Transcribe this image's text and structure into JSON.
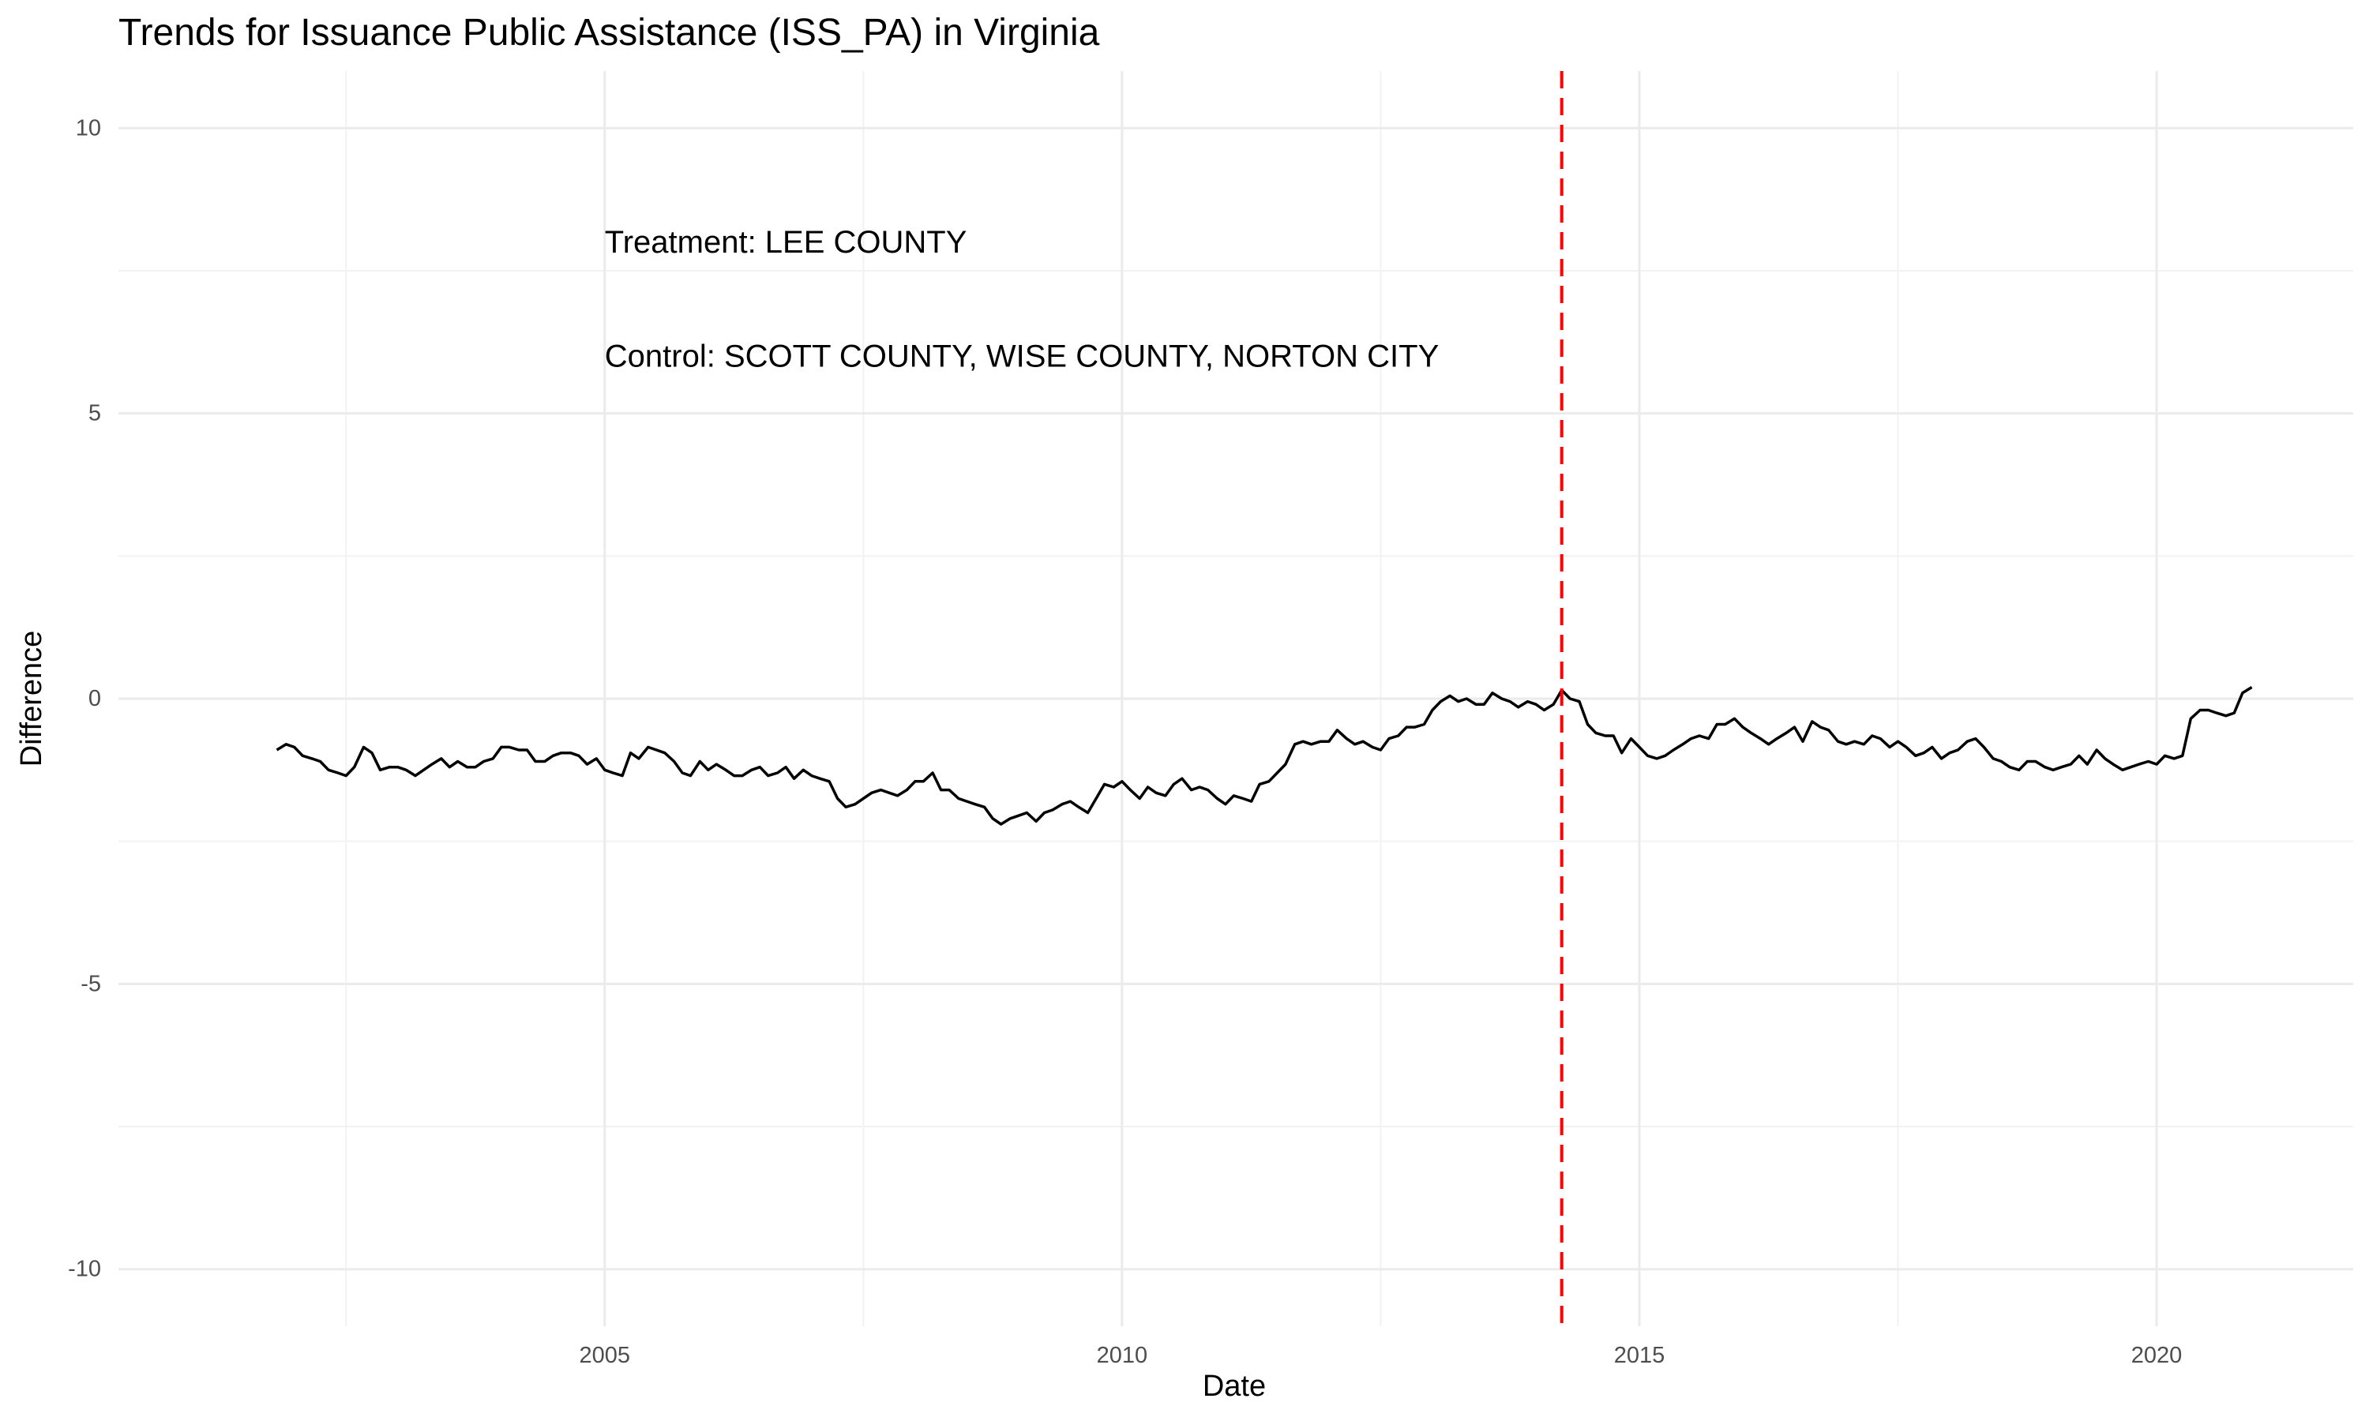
{
  "chart_data": {
    "type": "line",
    "title": "Trends for Issuance Public Assistance (ISS_PA) in Virginia",
    "xlabel": "Date",
    "ylabel": "Difference",
    "xlim": [
      2000.3,
      2021.9
    ],
    "ylim": [
      -11,
      11
    ],
    "x_ticks": [
      2005,
      2010,
      2015,
      2020
    ],
    "x_tick_labels": [
      "2005",
      "2010",
      "2015",
      "2020"
    ],
    "y_ticks": [
      -10,
      -5,
      0,
      5,
      10
    ],
    "y_tick_labels": [
      "-10",
      "-5",
      "0",
      "5",
      "10"
    ],
    "grid": true,
    "legend": "none",
    "line_color": "#000000",
    "treatment_line": {
      "x": 2014.25,
      "color": "#ff0000",
      "style": "dashed"
    },
    "annotations": [
      {
        "text": "Treatment: LEE COUNTY",
        "x": 2005.0,
        "y": 8.0
      },
      {
        "text": "Control: SCOTT COUNTY, WISE COUNTY, NORTON CITY",
        "x": 2005.0,
        "y": 6.0
      }
    ],
    "series": [
      {
        "x": [
          2001.83,
          2001.92,
          2002.0,
          2002.08,
          2002.17,
          2002.25,
          2002.33,
          2002.42,
          2002.5,
          2002.58,
          2002.67,
          2002.75,
          2002.83,
          2002.92,
          2003.0,
          2003.08,
          2003.17,
          2003.25,
          2003.33,
          2003.42,
          2003.5,
          2003.58,
          2003.67,
          2003.75,
          2003.83,
          2003.92,
          2004.0,
          2004.08,
          2004.17,
          2004.25,
          2004.33,
          2004.42,
          2004.5,
          2004.58,
          2004.67,
          2004.75,
          2004.83,
          2004.92,
          2005.0,
          2005.08,
          2005.17,
          2005.25,
          2005.33,
          2005.42,
          2005.5,
          2005.58,
          2005.67,
          2005.75,
          2005.83,
          2005.92,
          2006.0,
          2006.08,
          2006.17,
          2006.25,
          2006.33,
          2006.42,
          2006.5,
          2006.58,
          2006.67,
          2006.75,
          2006.83,
          2006.92,
          2007.0,
          2007.08,
          2007.17,
          2007.25,
          2007.33,
          2007.42,
          2007.5,
          2007.58,
          2007.67,
          2007.75,
          2007.83,
          2007.92,
          2008.0,
          2008.08,
          2008.17,
          2008.25,
          2008.33,
          2008.42,
          2008.5,
          2008.58,
          2008.67,
          2008.75,
          2008.83,
          2008.92,
          2009.0,
          2009.08,
          2009.17,
          2009.25,
          2009.33,
          2009.42,
          2009.5,
          2009.58,
          2009.67,
          2009.75,
          2009.83,
          2009.92,
          2010.0,
          2010.08,
          2010.17,
          2010.25,
          2010.33,
          2010.42,
          2010.5,
          2010.58,
          2010.67,
          2010.75,
          2010.83,
          2010.92,
          2011.0,
          2011.08,
          2011.17,
          2011.25,
          2011.33,
          2011.42,
          2011.5,
          2011.58,
          2011.67,
          2011.75,
          2011.83,
          2011.92,
          2012.0,
          2012.08,
          2012.17,
          2012.25,
          2012.33,
          2012.42,
          2012.5,
          2012.58,
          2012.67,
          2012.75,
          2012.83,
          2012.92,
          2013.0,
          2013.08,
          2013.17,
          2013.25,
          2013.33,
          2013.42,
          2013.5,
          2013.58,
          2013.67,
          2013.75,
          2013.83,
          2013.92,
          2014.0,
          2014.08,
          2014.17,
          2014.25,
          2014.33,
          2014.42,
          2014.5,
          2014.58,
          2014.67,
          2014.75,
          2014.83,
          2014.92,
          2015.0,
          2015.08,
          2015.17,
          2015.25,
          2015.33,
          2015.42,
          2015.5,
          2015.58,
          2015.67,
          2015.75,
          2015.83,
          2015.92,
          2016.0,
          2016.08,
          2016.17,
          2016.25,
          2016.33,
          2016.42,
          2016.5,
          2016.58,
          2016.67,
          2016.75,
          2016.83,
          2016.92,
          2017.0,
          2017.08,
          2017.17,
          2017.25,
          2017.33,
          2017.42,
          2017.5,
          2017.58,
          2017.67,
          2017.75,
          2017.83,
          2017.92,
          2018.0,
          2018.08,
          2018.17,
          2018.25,
          2018.33,
          2018.42,
          2018.5,
          2018.58,
          2018.67,
          2018.75,
          2018.83,
          2018.92,
          2019.0,
          2019.08,
          2019.17,
          2019.25,
          2019.33,
          2019.42,
          2019.5,
          2019.58,
          2019.67,
          2019.75,
          2019.83,
          2019.92,
          2020.0,
          2020.08,
          2020.17,
          2020.25,
          2020.33,
          2020.42,
          2020.5,
          2020.58,
          2020.67,
          2020.75,
          2020.83,
          2020.92
        ],
        "values": [
          -0.9,
          -0.8,
          -0.85,
          -1.0,
          -1.05,
          -1.1,
          -1.25,
          -1.3,
          -1.35,
          -1.2,
          -0.85,
          -0.95,
          -1.25,
          -1.2,
          -1.2,
          -1.25,
          -1.35,
          -1.25,
          -1.15,
          -1.05,
          -1.2,
          -1.1,
          -1.2,
          -1.2,
          -1.1,
          -1.05,
          -0.85,
          -0.85,
          -0.9,
          -0.9,
          -1.1,
          -1.1,
          -1.0,
          -0.95,
          -0.95,
          -1.0,
          -1.15,
          -1.05,
          -1.25,
          -1.3,
          -1.35,
          -0.95,
          -1.05,
          -0.85,
          -0.9,
          -0.95,
          -1.1,
          -1.3,
          -1.35,
          -1.1,
          -1.25,
          -1.15,
          -1.25,
          -1.35,
          -1.35,
          -1.25,
          -1.2,
          -1.35,
          -1.3,
          -1.2,
          -1.4,
          -1.25,
          -1.35,
          -1.4,
          -1.45,
          -1.75,
          -1.9,
          -1.85,
          -1.75,
          -1.65,
          -1.6,
          -1.65,
          -1.7,
          -1.6,
          -1.45,
          -1.45,
          -1.3,
          -1.6,
          -1.6,
          -1.75,
          -1.8,
          -1.85,
          -1.9,
          -2.1,
          -2.2,
          -2.1,
          -2.05,
          -2.0,
          -2.15,
          -2.0,
          -1.95,
          -1.85,
          -1.8,
          -1.9,
          -2.0,
          -1.75,
          -1.5,
          -1.55,
          -1.45,
          -1.6,
          -1.75,
          -1.55,
          -1.65,
          -1.7,
          -1.5,
          -1.4,
          -1.6,
          -1.55,
          -1.6,
          -1.75,
          -1.85,
          -1.7,
          -1.75,
          -1.8,
          -1.5,
          -1.45,
          -1.3,
          -1.15,
          -0.8,
          -0.75,
          -0.8,
          -0.75,
          -0.75,
          -0.55,
          -0.7,
          -0.8,
          -0.75,
          -0.85,
          -0.9,
          -0.7,
          -0.65,
          -0.5,
          -0.5,
          -0.45,
          -0.2,
          -0.05,
          0.05,
          -0.05,
          0.0,
          -0.1,
          -0.1,
          0.1,
          0.0,
          -0.05,
          -0.15,
          -0.05,
          -0.1,
          -0.2,
          -0.1,
          0.15,
          0.0,
          -0.05,
          -0.45,
          -0.6,
          -0.65,
          -0.65,
          -0.95,
          -0.7,
          -0.85,
          -1.0,
          -1.05,
          -1.0,
          -0.9,
          -0.8,
          -0.7,
          -0.65,
          -0.7,
          -0.45,
          -0.45,
          -0.35,
          -0.5,
          -0.6,
          -0.7,
          -0.8,
          -0.7,
          -0.6,
          -0.5,
          -0.75,
          -0.4,
          -0.5,
          -0.55,
          -0.75,
          -0.8,
          -0.75,
          -0.8,
          -0.65,
          -0.7,
          -0.85,
          -0.75,
          -0.85,
          -1.0,
          -0.95,
          -0.85,
          -1.05,
          -0.95,
          -0.9,
          -0.75,
          -0.7,
          -0.85,
          -1.05,
          -1.1,
          -1.2,
          -1.25,
          -1.1,
          -1.1,
          -1.2,
          -1.25,
          -1.2,
          -1.15,
          -1.0,
          -1.15,
          -0.9,
          -1.05,
          -1.15,
          -1.25,
          -1.2,
          -1.15,
          -1.1,
          -1.15,
          -1.0,
          -1.05,
          -1.0,
          -0.35,
          -0.2,
          -0.2,
          -0.25,
          -0.3,
          -0.25,
          0.1,
          0.2
        ]
      }
    ]
  }
}
